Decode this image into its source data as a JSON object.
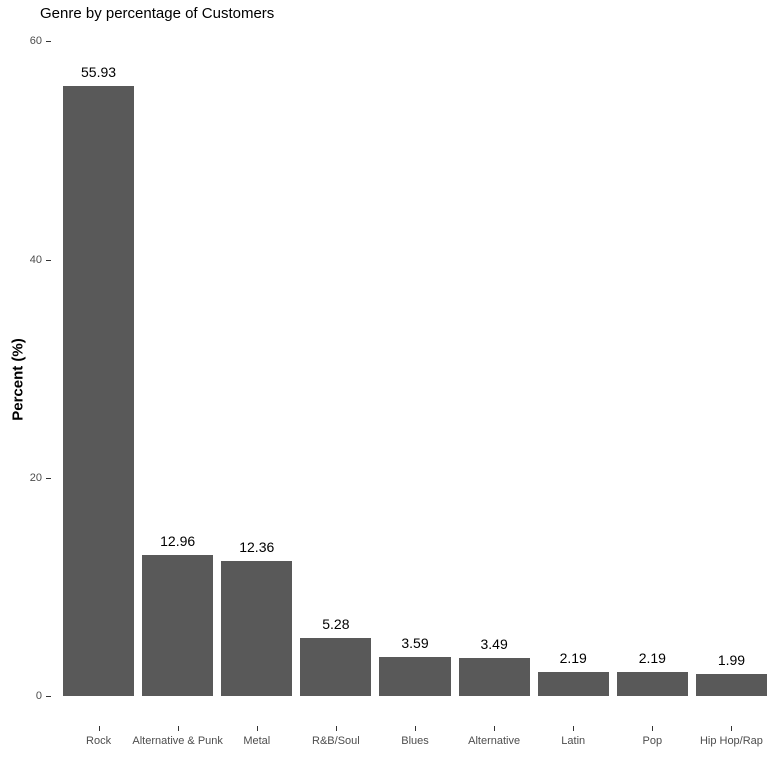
{
  "chart_data": {
    "type": "bar",
    "title": "Genre by percentage of Customers",
    "xlabel": "",
    "ylabel": "Percent (%)",
    "categories": [
      "Rock",
      "Alternative & Punk",
      "Metal",
      "R&B/Soul",
      "Blues",
      "Alternative",
      "Latin",
      "Pop",
      "Hip Hop/Rap"
    ],
    "values": [
      55.93,
      12.96,
      12.36,
      5.28,
      3.59,
      3.49,
      2.19,
      2.19,
      1.99
    ],
    "value_labels": [
      "55.93",
      "12.96",
      "12.36",
      "5.28",
      "3.59",
      "3.49",
      "2.19",
      "2.19",
      "1.99"
    ],
    "yticks": [
      0,
      20,
      40,
      60
    ],
    "ylim": [
      -2.8,
      62
    ],
    "grid": false,
    "legend_position": "none",
    "bar_color": "#595959",
    "axis_text_color": "#4d4d4d",
    "title_color": "#000000",
    "background_color": "#ffffff"
  }
}
